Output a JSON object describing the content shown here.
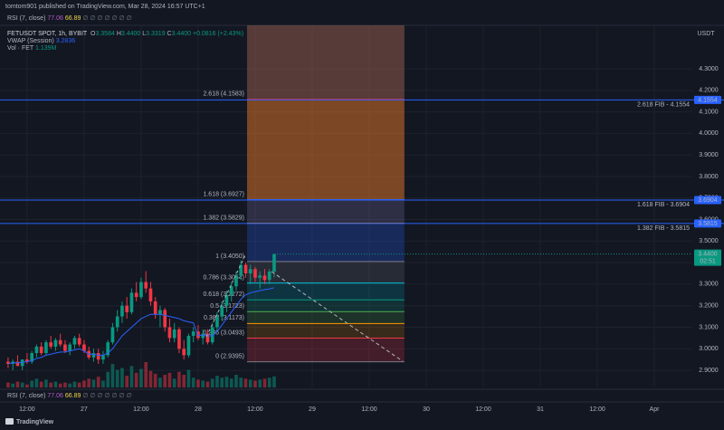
{
  "header": {
    "publisher": "tomtom901 published on TradingView.com, Mar 28, 2024 16:57 UTC+1"
  },
  "rsi": {
    "label": "RSI (7, close)",
    "value": 77.06,
    "signal": 66.89,
    "placeholders": "∅ ∅ ∅ ∅ ∅ ∅ ∅"
  },
  "legend": {
    "symbol": "FETUSDT SPOT, 1h, BYBIT",
    "ohlc": [
      {
        "label": "O",
        "value": "3.3584"
      },
      {
        "label": "H",
        "value": "3.4400"
      },
      {
        "label": "L",
        "value": "3.3319"
      },
      {
        "label": "C",
        "value": "3.4400"
      }
    ],
    "change": "+0.0816 (+2.43%)",
    "vwap_label": "VWAP (Session)",
    "vwap_value": "3.2836",
    "vol_label": "Vol · FET",
    "vol_value": "1.139M"
  },
  "footer": "TradingView",
  "chart_data": {
    "type": "candlestick",
    "y_unit": "USDT",
    "up_color": "#089981",
    "down_color": "#f23645",
    "vwap_color": "#2962ff",
    "grid": true,
    "ylim": [
      2.8204,
      4.5018
    ],
    "yticks": [
      {
        "value": 2.9,
        "label": "2.9000"
      },
      {
        "value": 3.0,
        "label": "3.0000"
      },
      {
        "value": 3.1,
        "label": "3.1000"
      },
      {
        "value": 3.2,
        "label": "3.2000"
      },
      {
        "value": 3.3,
        "label": "3.3000"
      },
      {
        "value": 3.4,
        "label": "3.4000"
      },
      {
        "value": 3.5,
        "label": "3.5000"
      },
      {
        "value": 3.6,
        "label": "3.6000"
      },
      {
        "value": 3.7,
        "label": "3.7000"
      },
      {
        "value": 3.8,
        "label": "3.8000"
      },
      {
        "value": 3.9,
        "label": "3.9000"
      },
      {
        "value": 4.0,
        "label": "4.0000"
      },
      {
        "value": 4.1,
        "label": "4.1000"
      },
      {
        "value": 4.2,
        "label": "4.2000"
      },
      {
        "value": 4.3,
        "label": "4.3000"
      }
    ],
    "xlim": [
      -1.7,
      144
    ],
    "xticks": [
      {
        "value": 4,
        "label": "12:00"
      },
      {
        "value": 16,
        "label": "27"
      },
      {
        "value": 28,
        "label": "12:00"
      },
      {
        "value": 40,
        "label": "28"
      },
      {
        "value": 52,
        "label": "12:00"
      },
      {
        "value": 64,
        "label": "29"
      },
      {
        "value": 76,
        "label": "12:00"
      },
      {
        "value": 88,
        "label": "30"
      },
      {
        "value": 100,
        "label": "12:00"
      },
      {
        "value": 112,
        "label": "31"
      },
      {
        "value": 124,
        "label": "12:00"
      },
      {
        "value": 136,
        "label": "Apr"
      }
    ],
    "open": [
      2.94,
      2.93,
      2.94,
      2.92,
      2.95,
      2.94,
      2.98,
      3.01,
      2.98,
      3.03,
      3.01,
      3.04,
      3.02,
      2.99,
      3.02,
      3.05,
      3.02,
      2.99,
      2.96,
      2.98,
      2.95,
      2.97,
      3.03,
      3.1,
      3.15,
      3.2,
      3.17,
      3.26,
      3.24,
      3.31,
      3.28,
      3.22,
      3.16,
      3.18,
      3.1,
      3.05,
      3.09,
      3.0,
      2.97,
      3.06,
      3.08,
      3.05,
      3.07,
      3.03,
      3.1,
      3.15,
      3.2,
      3.25,
      3.29,
      3.34,
      3.39,
      3.35,
      3.37,
      3.33,
      3.34,
      3.32,
      3.3584
    ],
    "high": [
      2.96,
      2.95,
      2.97,
      2.95,
      2.98,
      2.99,
      3.02,
      3.03,
      3.04,
      3.06,
      3.05,
      3.07,
      3.04,
      3.03,
      3.06,
      3.07,
      3.04,
      3.01,
      3.0,
      3.0,
      2.99,
      3.04,
      3.12,
      3.18,
      3.22,
      3.24,
      3.28,
      3.31,
      3.33,
      3.36,
      3.31,
      3.24,
      3.2,
      3.19,
      3.14,
      3.12,
      3.1,
      3.04,
      3.07,
      3.1,
      3.11,
      3.09,
      3.09,
      3.12,
      3.17,
      3.22,
      3.27,
      3.31,
      3.36,
      3.41,
      3.4,
      3.39,
      3.38,
      3.36,
      3.37,
      3.37,
      3.44
    ],
    "low": [
      2.91,
      2.9,
      2.92,
      2.9,
      2.93,
      2.93,
      2.96,
      2.97,
      2.97,
      3.0,
      2.99,
      3.01,
      2.98,
      2.97,
      3.0,
      3.01,
      2.98,
      2.95,
      2.94,
      2.93,
      2.93,
      2.96,
      3.02,
      3.08,
      3.12,
      3.14,
      3.16,
      3.22,
      3.23,
      3.26,
      3.2,
      3.14,
      3.1,
      3.08,
      3.03,
      3.03,
      2.98,
      2.95,
      2.96,
      3.03,
      3.04,
      3.02,
      3.02,
      3.02,
      3.08,
      3.13,
      3.17,
      3.22,
      3.27,
      3.32,
      3.33,
      3.3,
      3.31,
      3.28,
      3.3,
      3.3,
      3.3319
    ],
    "close": [
      2.93,
      2.94,
      2.92,
      2.95,
      2.94,
      2.98,
      3.01,
      2.98,
      3.03,
      3.01,
      3.04,
      3.02,
      2.99,
      3.02,
      3.05,
      3.02,
      2.99,
      2.96,
      2.98,
      2.95,
      2.97,
      3.03,
      3.1,
      3.15,
      3.2,
      3.17,
      3.26,
      3.24,
      3.31,
      3.28,
      3.22,
      3.16,
      3.18,
      3.1,
      3.05,
      3.09,
      3.0,
      2.97,
      3.06,
      3.08,
      3.05,
      3.07,
      3.03,
      3.1,
      3.15,
      3.2,
      3.25,
      3.29,
      3.34,
      3.39,
      3.35,
      3.37,
      3.33,
      3.34,
      3.32,
      3.3584,
      3.44
    ],
    "volume": [
      0.5,
      0.4,
      0.6,
      0.5,
      0.3,
      0.7,
      0.9,
      0.6,
      0.8,
      0.5,
      0.6,
      0.4,
      0.5,
      0.4,
      0.6,
      0.5,
      0.7,
      0.9,
      0.8,
      1.1,
      0.7,
      1.6,
      2.4,
      1.8,
      2.0,
      1.2,
      2.2,
      1.5,
      1.9,
      2.6,
      1.7,
      1.4,
      1.0,
      1.3,
      1.5,
      0.9,
      1.6,
      1.3,
      1.8,
      1.0,
      0.8,
      0.7,
      0.6,
      0.9,
      1.2,
      1.0,
      1.1,
      0.9,
      1.3,
      1.0,
      0.9,
      0.8,
      0.7,
      0.8,
      0.9,
      1.0,
      1.139
    ],
    "vwap": [
      2.93,
      2.935,
      2.935,
      2.937,
      2.94,
      2.945,
      2.955,
      2.96,
      2.97,
      2.975,
      2.98,
      2.985,
      2.985,
      2.99,
      2.995,
      3.0,
      2.99,
      2.975,
      2.975,
      2.97,
      2.97,
      2.98,
      3.0,
      3.03,
      3.06,
      3.08,
      3.1,
      3.12,
      3.14,
      3.15,
      3.16,
      3.16,
      3.16,
      3.155,
      3.15,
      3.145,
      3.14,
      3.13,
      3.125,
      3.12,
      3.06,
      3.065,
      3.06,
      3.06,
      3.08,
      3.11,
      3.14,
      3.17,
      3.2,
      3.23,
      3.25,
      3.26,
      3.265,
      3.27,
      3.275,
      3.278,
      3.2836
    ],
    "fib": {
      "anchors": [
        50.3,
        83.4
      ],
      "levels": [
        {
          "level": 0,
          "value": 2.9395,
          "label": "0 (2.9395)",
          "color": "#787b86",
          "fill": "rgba(242,54,69,0.22)"
        },
        {
          "level": 0.236,
          "value": 3.0493,
          "label": "0.236 (3.0493)",
          "color": "#f23645",
          "fill": "rgba(255,152,0,0.16)"
        },
        {
          "level": 0.382,
          "value": 3.1173,
          "label": "0.382 (3.1173)",
          "color": "#ff9800",
          "fill": "rgba(76,175,80,0.18)"
        },
        {
          "level": 0.5,
          "value": 3.1723,
          "label": "0.5 (3.1723)",
          "color": "#4caf50",
          "fill": "rgba(8,153,129,0.2)"
        },
        {
          "level": 0.618,
          "value": 3.2272,
          "label": "0.618 (3.2272)",
          "color": "#089981",
          "fill": "rgba(0,188,212,0.18)"
        },
        {
          "level": 0.786,
          "value": 3.3054,
          "label": "0.786 (3.3054)",
          "color": "#00bcd4",
          "fill": "rgba(120,123,134,0.2)"
        },
        {
          "level": 1,
          "value": 3.405,
          "label": "1 (3.4050)",
          "color": "#787b86",
          "fill": "rgba(41,98,255,0.25)"
        },
        {
          "level": 1.382,
          "value": 3.5829,
          "label": "1.382 (3.5829)",
          "color": "#ff9800",
          "fill": "rgba(120,110,160,0.28)"
        },
        {
          "level": 1.618,
          "value": 3.6927,
          "label": "1.618 (3.6927)",
          "color": "#2962ff",
          "fill": "rgba(230,120,40,0.5)"
        },
        {
          "level": 2.618,
          "value": 4.1583,
          "label": "2.618 (4.1583)",
          "color": "#f23645",
          "fill": "rgba(180,110,90,0.42)"
        }
      ]
    },
    "lines": {
      "color": "#2962ff",
      "items": [
        {
          "value": 4.1554,
          "label": "2.618 FIB - 4.1554"
        },
        {
          "value": 3.6904,
          "label": "1.618 FIB - 3.6904"
        },
        {
          "value": 3.5815,
          "label": "1.382 FIB - 3.5815"
        }
      ]
    },
    "last_price": {
      "value": 3.44,
      "label": "3.4400",
      "countdown": "02:51"
    }
  }
}
